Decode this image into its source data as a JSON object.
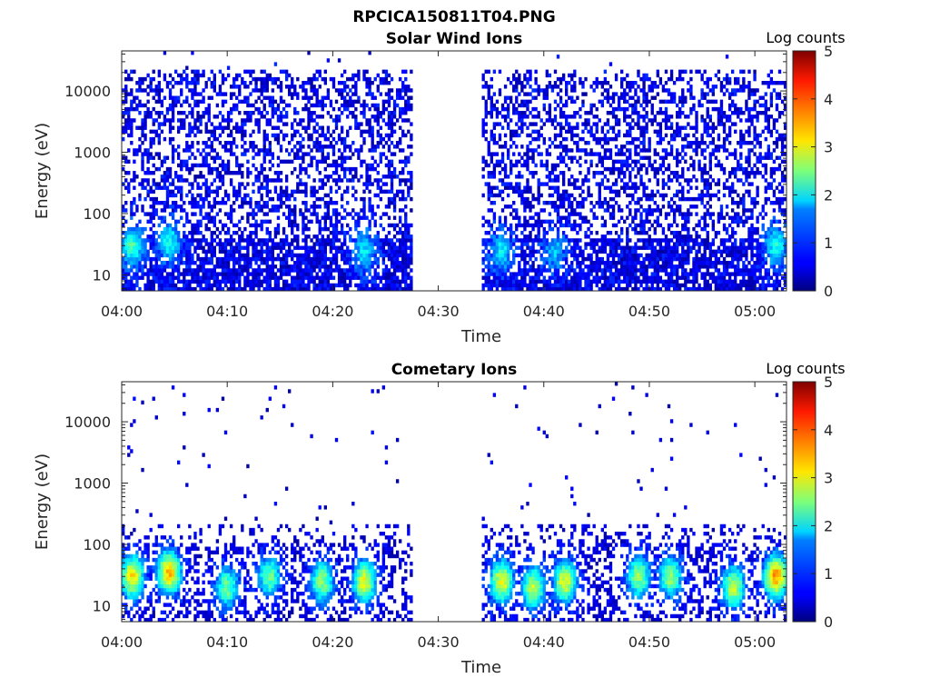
{
  "figure": {
    "title": "RPCICA150811T04.PNG"
  },
  "colormap": {
    "name": "jet",
    "label": "Log counts",
    "range": [
      0,
      5
    ],
    "ticks": [
      "0",
      "1",
      "2",
      "3",
      "4",
      "5"
    ]
  },
  "chart_data": [
    {
      "type": "heatmap",
      "title": "Solar Wind Ions",
      "xlabel": "Time",
      "ylabel": "Energy (eV)",
      "x_ticks": [
        "04:00",
        "04:10",
        "04:20",
        "04:30",
        "04:40",
        "04:50",
        "05:00"
      ],
      "x_range_minutes": [
        0,
        63
      ],
      "y_scale": "log",
      "y_ticks": [
        "10",
        "100",
        "1000",
        "10000"
      ],
      "y_range": [
        5.5,
        45000
      ],
      "data_gap_minutes": [
        27.6,
        34
      ],
      "colorbar": "Log counts",
      "clim": [
        0,
        5
      ],
      "description_hotspots": [
        {
          "time_min": 1,
          "energy_ev": 30,
          "log_counts": 2.2
        },
        {
          "time_min": 4.5,
          "energy_ev": 35,
          "log_counts": 2.0
        },
        {
          "time_min": 23,
          "energy_ev": 25,
          "log_counts": 1.8
        },
        {
          "time_min": 36,
          "energy_ev": 25,
          "log_counts": 1.8
        },
        {
          "time_min": 41,
          "energy_ev": 25,
          "log_counts": 1.6
        },
        {
          "time_min": 62,
          "energy_ev": 30,
          "log_counts": 2.0
        }
      ]
    },
    {
      "type": "heatmap",
      "title": "Cometary Ions",
      "xlabel": "Time",
      "ylabel": "Energy (eV)",
      "x_ticks": [
        "04:00",
        "04:10",
        "04:20",
        "04:30",
        "04:40",
        "04:50",
        "05:00"
      ],
      "x_range_minutes": [
        0,
        63
      ],
      "y_scale": "log",
      "y_ticks": [
        "10",
        "100",
        "1000",
        "10000"
      ],
      "y_range": [
        5.5,
        45000
      ],
      "data_gap_minutes": [
        27.6,
        34
      ],
      "colorbar": "Log counts",
      "clim": [
        0,
        5
      ],
      "description_hotspots": [
        {
          "time_min": 1,
          "energy_ev": 30,
          "log_counts": 3.2
        },
        {
          "time_min": 4.5,
          "energy_ev": 35,
          "log_counts": 3.4
        },
        {
          "time_min": 10,
          "energy_ev": 20,
          "log_counts": 2.4
        },
        {
          "time_min": 14,
          "energy_ev": 30,
          "log_counts": 2.4
        },
        {
          "time_min": 19,
          "energy_ev": 25,
          "log_counts": 2.6
        },
        {
          "time_min": 23,
          "energy_ev": 25,
          "log_counts": 3.0
        },
        {
          "time_min": 36,
          "energy_ev": 25,
          "log_counts": 3.0
        },
        {
          "time_min": 39,
          "energy_ev": 20,
          "log_counts": 2.8
        },
        {
          "time_min": 42,
          "energy_ev": 25,
          "log_counts": 3.0
        },
        {
          "time_min": 49,
          "energy_ev": 30,
          "log_counts": 2.6
        },
        {
          "time_min": 52,
          "energy_ev": 30,
          "log_counts": 2.6
        },
        {
          "time_min": 58,
          "energy_ev": 20,
          "log_counts": 2.8
        },
        {
          "time_min": 62,
          "energy_ev": 30,
          "log_counts": 3.6
        }
      ]
    }
  ]
}
